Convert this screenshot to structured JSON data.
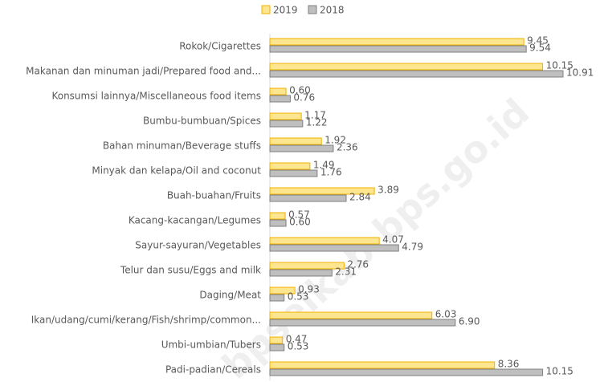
{
  "chart_data": {
    "type": "bar",
    "orientation": "horizontal",
    "categories": [
      "Rokok/Cigarettes",
      "Makanan dan minuman jadi/Prepared food and...",
      "Konsumsi lainnya/Miscellaneous food items",
      "Bumbu-bumbuan/Spices",
      "Bahan minuman/Beverage stuffs",
      "Minyak dan kelapa/Oil and coconut",
      "Buah-buahan/Fruits",
      "Kacang-kacangan/Legumes",
      "Sayur-sayuran/Vegetables",
      "Telur dan susu/Eggs and milk",
      "Daging/Meat",
      "Ikan/udang/cumi/kerang/Fish/shrimp/common...",
      "Umbi-umbian/Tubers",
      "Padi-padian/Cereals"
    ],
    "series": [
      {
        "name": "2019",
        "color": "#fde68f",
        "edge": "#f0b000",
        "values": [
          9.45,
          10.15,
          0.6,
          1.17,
          1.92,
          1.49,
          3.89,
          0.57,
          4.07,
          2.76,
          0.93,
          6.03,
          0.47,
          8.36
        ],
        "value_labels": [
          "9.45",
          "10.15",
          "0.60",
          "1.17",
          "1.92",
          "1.49",
          "3.89",
          "0.57",
          "4.07",
          "2.76",
          "0.93",
          "6.03",
          "0.47",
          "8.36"
        ]
      },
      {
        "name": "2018",
        "color": "#bfbfbf",
        "edge": "#7f7f7f",
        "values": [
          9.54,
          10.91,
          0.76,
          1.22,
          2.36,
          1.76,
          2.84,
          0.6,
          4.79,
          2.31,
          0.53,
          6.9,
          0.53,
          10.15
        ],
        "value_labels": [
          "9.54",
          "10.91",
          "0.76",
          "1.22",
          "2.36",
          "1.76",
          "2.84",
          "0.60",
          "4.79",
          "2.31",
          "0.53",
          "6.90",
          "0.53",
          "10.15"
        ]
      }
    ],
    "legend": "top",
    "watermark": "bpselkab.bps.go.id"
  }
}
